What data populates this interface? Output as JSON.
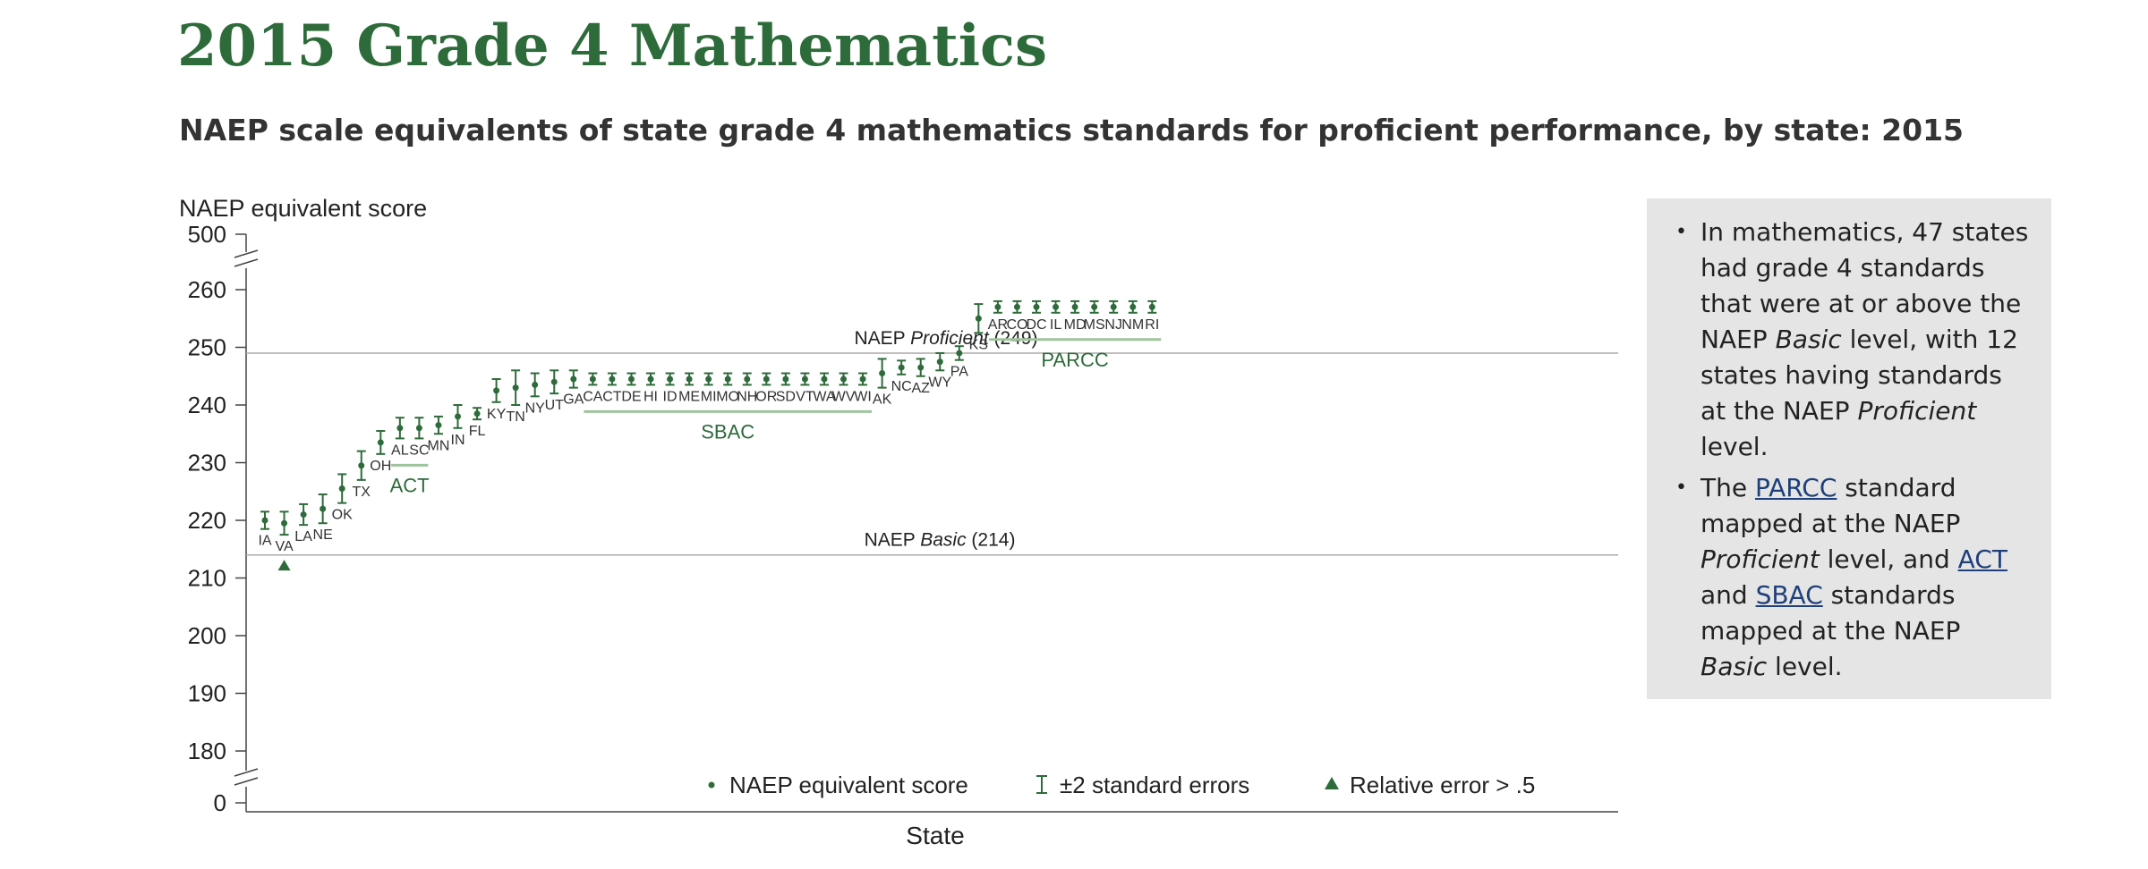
{
  "title": "2015 Grade 4 Mathematics",
  "subtitle": "NAEP scale equivalents of state grade 4 mathematics standards for proficient performance, by state: 2015",
  "colors": {
    "title": "#2e6b3a",
    "marker": "#2e6b3a",
    "group_line": "#9ec49e",
    "reference_line": "#aaaaaa",
    "note_bg": "#e5e5e5"
  },
  "chart_data": {
    "type": "scatter",
    "ylabel": "NAEP equivalent score",
    "xlabel": "State",
    "y_axis_ticks": [
      "500",
      "260",
      "250",
      "240",
      "230",
      "220",
      "210",
      "200",
      "190",
      "180",
      "0"
    ],
    "ylim": [
      180,
      260
    ],
    "axis_breaks": [
      "between 260 and 500",
      "between 0 and 180"
    ],
    "grid": false,
    "reference_lines": [
      {
        "value": 249,
        "label_prefix": "NAEP ",
        "label_italic": "Proficient",
        "label_suffix": " (249)"
      },
      {
        "value": 214,
        "label_prefix": "NAEP ",
        "label_italic": "Basic",
        "label_suffix": " (214)"
      }
    ],
    "groups": [
      {
        "name": "ACT",
        "states": [
          "AL",
          "SC"
        ]
      },
      {
        "name": "SBAC",
        "states": [
          "CA",
          "CT",
          "DE",
          "HI",
          "ID",
          "ME",
          "MI",
          "MO",
          "NH",
          "OR",
          "SD",
          "VT",
          "WA",
          "WV",
          "WI"
        ]
      },
      {
        "name": "PARCC",
        "states": [
          "AR",
          "CO",
          "DC",
          "IL",
          "MD",
          "MS",
          "NJ",
          "NM",
          "RI"
        ]
      }
    ],
    "series": [
      {
        "name": "NAEP equivalent score",
        "points": [
          {
            "state": "IA",
            "value": 220.0,
            "se2": 1.5
          },
          {
            "state": "VA",
            "value": 219.5,
            "se2": 2.0,
            "relative_error_gt_half": true
          },
          {
            "state": "LA",
            "value": 221.0,
            "se2": 1.8
          },
          {
            "state": "NE",
            "value": 222.0,
            "se2": 2.5
          },
          {
            "state": "OK",
            "value": 225.5,
            "se2": 2.5
          },
          {
            "state": "TX",
            "value": 229.5,
            "se2": 2.5
          },
          {
            "state": "OH",
            "value": 233.5,
            "se2": 2.0
          },
          {
            "state": "AL",
            "value": 236.0,
            "se2": 1.8
          },
          {
            "state": "SC",
            "value": 236.0,
            "se2": 1.8
          },
          {
            "state": "MN",
            "value": 236.5,
            "se2": 1.5
          },
          {
            "state": "IN",
            "value": 238.0,
            "se2": 2.0
          },
          {
            "state": "FL",
            "value": 238.5,
            "se2": 1.0
          },
          {
            "state": "KY",
            "value": 242.5,
            "se2": 2.0
          },
          {
            "state": "TN",
            "value": 243.0,
            "se2": 3.0
          },
          {
            "state": "NY",
            "value": 243.5,
            "se2": 2.0
          },
          {
            "state": "UT",
            "value": 244.0,
            "se2": 2.0
          },
          {
            "state": "GA",
            "value": 244.5,
            "se2": 1.5
          },
          {
            "state": "CA",
            "value": 244.5,
            "se2": 1.0
          },
          {
            "state": "CT",
            "value": 244.5,
            "se2": 1.0
          },
          {
            "state": "DE",
            "value": 244.5,
            "se2": 1.0
          },
          {
            "state": "HI",
            "value": 244.5,
            "se2": 1.0
          },
          {
            "state": "ID",
            "value": 244.5,
            "se2": 1.0
          },
          {
            "state": "ME",
            "value": 244.5,
            "se2": 1.0
          },
          {
            "state": "MI",
            "value": 244.5,
            "se2": 1.0
          },
          {
            "state": "MO",
            "value": 244.5,
            "se2": 1.0
          },
          {
            "state": "NH",
            "value": 244.5,
            "se2": 1.0
          },
          {
            "state": "OR",
            "value": 244.5,
            "se2": 1.0
          },
          {
            "state": "SD",
            "value": 244.5,
            "se2": 1.0
          },
          {
            "state": "VT",
            "value": 244.5,
            "se2": 1.0
          },
          {
            "state": "WA",
            "value": 244.5,
            "se2": 1.0
          },
          {
            "state": "WV",
            "value": 244.5,
            "se2": 1.0
          },
          {
            "state": "WI",
            "value": 244.5,
            "se2": 1.0
          },
          {
            "state": "AK",
            "value": 245.5,
            "se2": 2.5
          },
          {
            "state": "NC",
            "value": 246.5,
            "se2": 1.2
          },
          {
            "state": "AZ",
            "value": 246.5,
            "se2": 1.5
          },
          {
            "state": "WY",
            "value": 247.5,
            "se2": 1.5
          },
          {
            "state": "PA",
            "value": 249.0,
            "se2": 1.2
          },
          {
            "state": "KS",
            "value": 255.0,
            "se2": 2.5
          },
          {
            "state": "AR",
            "value": 257.0,
            "se2": 1.0
          },
          {
            "state": "CO",
            "value": 257.0,
            "se2": 1.0
          },
          {
            "state": "DC",
            "value": 257.0,
            "se2": 1.0
          },
          {
            "state": "IL",
            "value": 257.0,
            "se2": 1.0
          },
          {
            "state": "MD",
            "value": 257.0,
            "se2": 1.0
          },
          {
            "state": "MS",
            "value": 257.0,
            "se2": 1.0
          },
          {
            "state": "NJ",
            "value": 257.0,
            "se2": 1.0
          },
          {
            "state": "NM",
            "value": 257.0,
            "se2": 1.0
          },
          {
            "state": "RI",
            "value": 257.0,
            "se2": 1.0
          }
        ]
      }
    ],
    "legend": {
      "placement": "bottom",
      "items": [
        {
          "symbol": "dot",
          "label": "NAEP equivalent score"
        },
        {
          "symbol": "errorbar",
          "label": "±2 standard errors"
        },
        {
          "symbol": "triangle",
          "label": "Relative error > .5"
        }
      ]
    }
  },
  "note": {
    "items": [
      {
        "parts": [
          {
            "text": "In mathematics, 47 states had grade 4 standards that were at or above the NAEP "
          },
          {
            "text": "Basic",
            "style": "italic"
          },
          {
            "text": " level, with 12 states having standards at the NAEP "
          },
          {
            "text": "Proficient",
            "style": "italic"
          },
          {
            "text": " level."
          }
        ]
      },
      {
        "parts": [
          {
            "text": "The "
          },
          {
            "text": "PARCC",
            "style": "link"
          },
          {
            "text": " standard mapped at the NAEP "
          },
          {
            "text": "Proficient",
            "style": "italic"
          },
          {
            "text": " level, and "
          },
          {
            "text": "ACT",
            "style": "link"
          },
          {
            "text": " and "
          },
          {
            "text": "SBAC",
            "style": "link"
          },
          {
            "text": " standards mapped at the NAEP "
          },
          {
            "text": "Basic",
            "style": "italic"
          },
          {
            "text": " level."
          }
        ]
      }
    ]
  }
}
